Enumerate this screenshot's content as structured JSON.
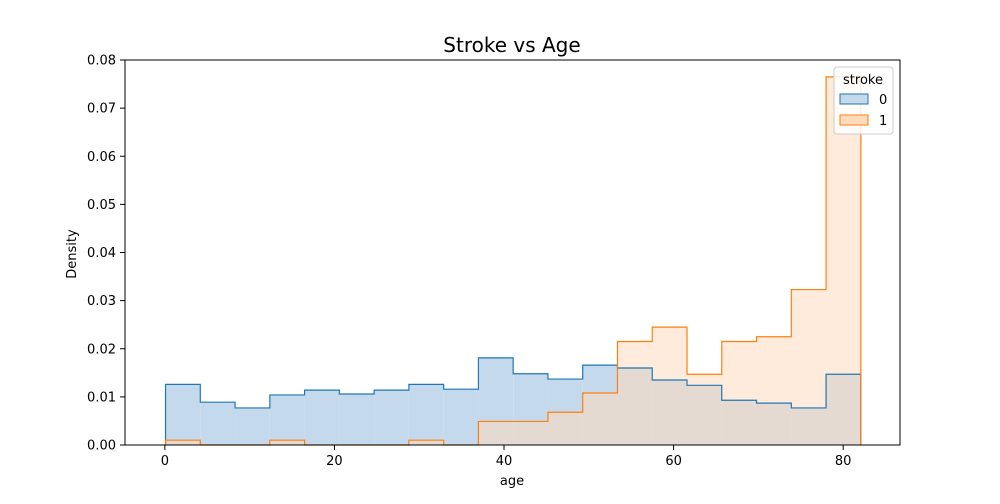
{
  "chart_data": {
    "type": "histogram",
    "title": "Stroke vs Age",
    "xlabel": "age",
    "ylabel": "Density",
    "xlim": [
      -4.7,
      86.7
    ],
    "ylim": [
      0,
      0.08
    ],
    "x_ticks": [
      0,
      20,
      40,
      60,
      80
    ],
    "y_ticks": [
      0.0,
      0.01,
      0.02,
      0.03,
      0.04,
      0.05,
      0.06,
      0.07,
      0.08
    ],
    "y_tick_labels": [
      "0.00",
      "0.01",
      "0.02",
      "0.03",
      "0.04",
      "0.05",
      "0.06",
      "0.07",
      "0.08"
    ],
    "grid": false,
    "legend": {
      "title": "stroke",
      "placement": "top-right"
    },
    "bin_edges": [
      0.08,
      4.18,
      8.28,
      12.38,
      16.48,
      20.58,
      24.68,
      28.78,
      32.88,
      36.98,
      41.08,
      45.18,
      49.28,
      53.38,
      57.48,
      61.58,
      65.68,
      69.78,
      73.88,
      77.98,
      82.08
    ],
    "series": [
      {
        "name": "0",
        "color": "#1f77b4",
        "fill": "#c5d9ec",
        "values": [
          0.0126,
          0.0089,
          0.0077,
          0.0104,
          0.0114,
          0.0106,
          0.0114,
          0.0126,
          0.0116,
          0.0181,
          0.0148,
          0.0137,
          0.0166,
          0.016,
          0.0135,
          0.0124,
          0.0093,
          0.0087,
          0.0077,
          0.0147
        ]
      },
      {
        "name": "1",
        "color": "#ff7f0e",
        "fill": "#ffdabd",
        "values": [
          0.001,
          0.0,
          0.0,
          0.001,
          0.0,
          0.0,
          0.0,
          0.001,
          0.0,
          0.0049,
          0.0049,
          0.0068,
          0.0108,
          0.0215,
          0.0245,
          0.0147,
          0.0215,
          0.0225,
          0.0323,
          0.0765
        ]
      }
    ]
  }
}
